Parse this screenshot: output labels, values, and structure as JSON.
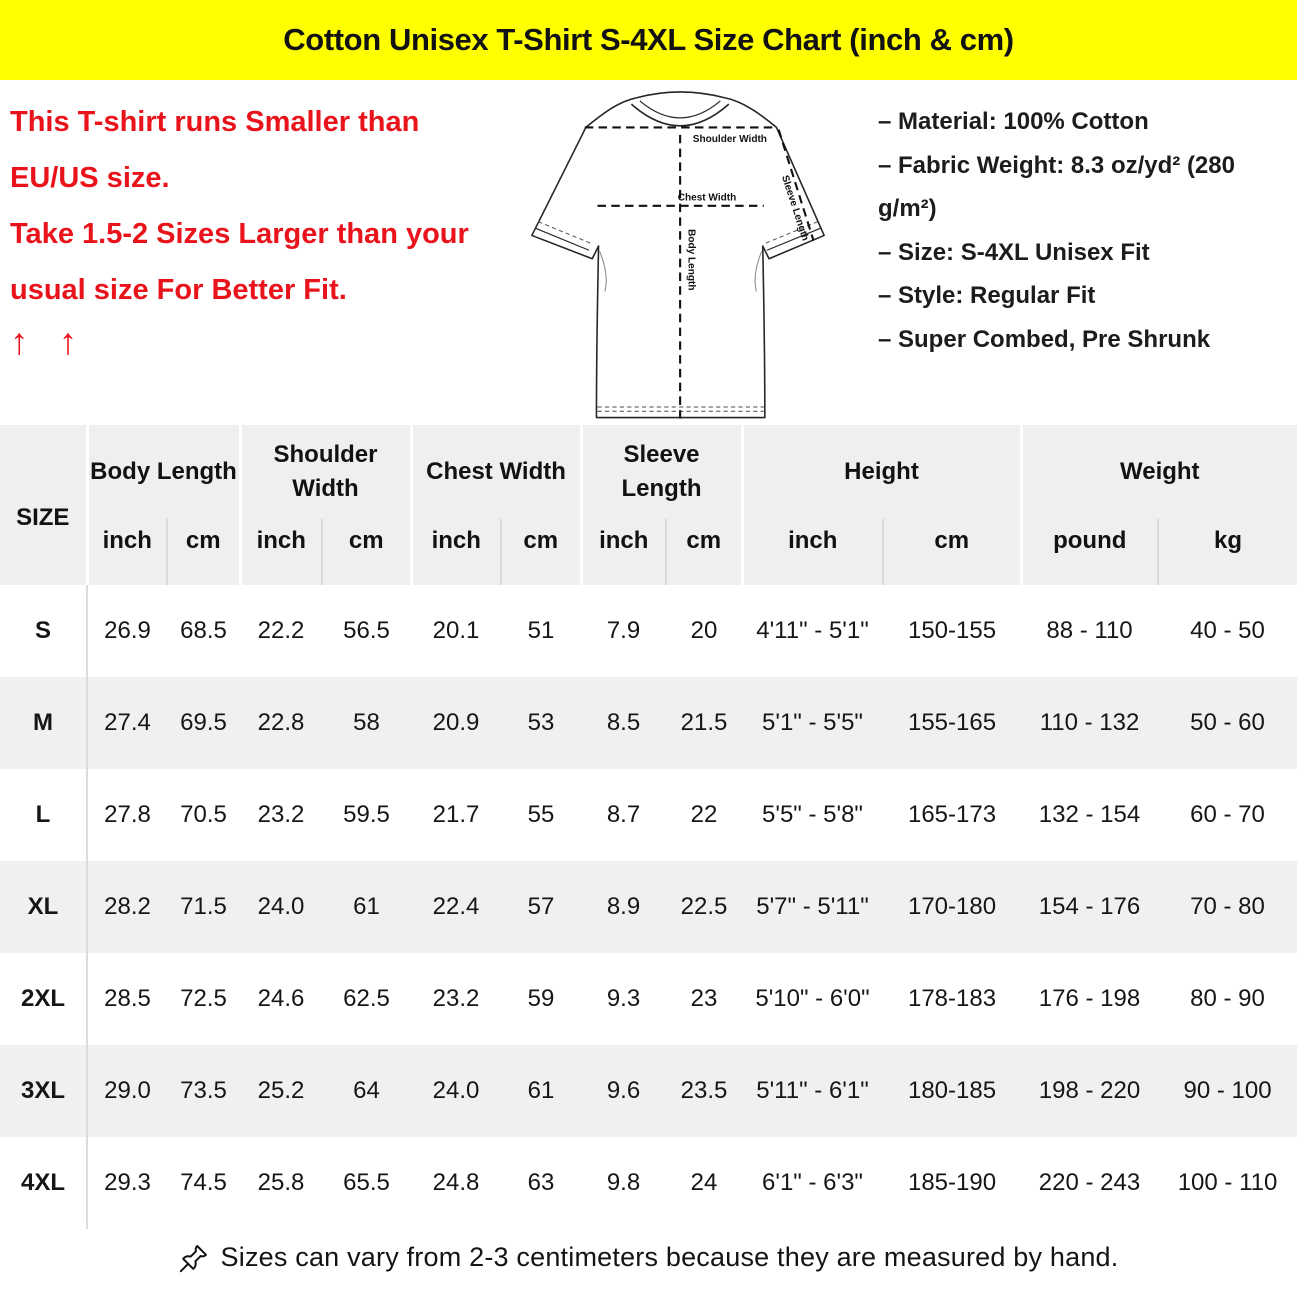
{
  "banner": {
    "title": "Cotton Unisex T-Shirt S-4XL Size Chart (inch & cm)",
    "bg_color": "#FFFF00"
  },
  "notice": {
    "line1": "This T-shirt runs Smaller than EU/US size.",
    "line2": "Take 1.5-2 Sizes Larger than your usual size For Better Fit.",
    "arrows": "↑ ↑",
    "color": "#E9131B"
  },
  "diagram": {
    "labels": {
      "shoulder_width": "Shoulder Width",
      "chest_width": "Chest Width",
      "body_length": "Body Length",
      "sleeve_length": "Sleeve Length"
    }
  },
  "specs": {
    "items": [
      "– Material: 100% Cotton",
      "– Fabric Weight: 8.3 oz/yd² (280 g/m²)",
      "– Size: S-4XL Unisex Fit",
      "– Style: Regular Fit",
      "– Super Combed, Pre Shrunk"
    ]
  },
  "table": {
    "col_groups": [
      {
        "label": "SIZE",
        "units": []
      },
      {
        "label": "Body Length",
        "units": [
          "inch",
          "cm"
        ]
      },
      {
        "label": "Shoulder Width",
        "units": [
          "inch",
          "cm"
        ]
      },
      {
        "label": "Chest Width",
        "units": [
          "inch",
          "cm"
        ]
      },
      {
        "label": "Sleeve Length",
        "units": [
          "inch",
          "cm"
        ]
      },
      {
        "label": "Height",
        "units": [
          "inch",
          "cm"
        ]
      },
      {
        "label": "Weight",
        "units": [
          "pound",
          "kg"
        ]
      }
    ],
    "rows": [
      {
        "size": "S",
        "values": [
          "26.9",
          "68.5",
          "22.2",
          "56.5",
          "20.1",
          "51",
          "7.9",
          "20",
          "4'11\" - 5'1\"",
          "150-155",
          "88 - 110",
          "40 - 50"
        ]
      },
      {
        "size": "M",
        "values": [
          "27.4",
          "69.5",
          "22.8",
          "58",
          "20.9",
          "53",
          "8.5",
          "21.5",
          "5'1\" - 5'5\"",
          "155-165",
          "110 - 132",
          "50 - 60"
        ]
      },
      {
        "size": "L",
        "values": [
          "27.8",
          "70.5",
          "23.2",
          "59.5",
          "21.7",
          "55",
          "8.7",
          "22",
          "5'5\" - 5'8\"",
          "165-173",
          "132 - 154",
          "60 - 70"
        ]
      },
      {
        "size": "XL",
        "values": [
          "28.2",
          "71.5",
          "24.0",
          "61",
          "22.4",
          "57",
          "8.9",
          "22.5",
          "5'7\" - 5'11\"",
          "170-180",
          "154 - 176",
          "70 - 80"
        ]
      },
      {
        "size": "2XL",
        "values": [
          "28.5",
          "72.5",
          "24.6",
          "62.5",
          "23.2",
          "59",
          "9.3",
          "23",
          "5'10\" - 6'0\"",
          "178-183",
          "176 - 198",
          "80 - 90"
        ]
      },
      {
        "size": "3XL",
        "values": [
          "29.0",
          "73.5",
          "25.2",
          "64",
          "24.0",
          "61",
          "9.6",
          "23.5",
          "5'11\" - 6'1\"",
          "180-185",
          "198 - 220",
          "90 - 100"
        ]
      },
      {
        "size": "4XL",
        "values": [
          "29.3",
          "74.5",
          "25.8",
          "65.5",
          "24.8",
          "63",
          "9.8",
          "24",
          "6'1\" - 6'3\"",
          "185-190",
          "220 - 243",
          "100 - 110"
        ]
      }
    ]
  },
  "footer": {
    "text": "Sizes can vary from 2-3 centimeters because they are measured by hand.",
    "icon": "pushpin-icon"
  },
  "colors": {
    "banner_bg": "#FFFF00",
    "notice_red": "#E9131B",
    "header_bg": "#EFEFED",
    "row_alt_bg": "#F0F0EE"
  }
}
